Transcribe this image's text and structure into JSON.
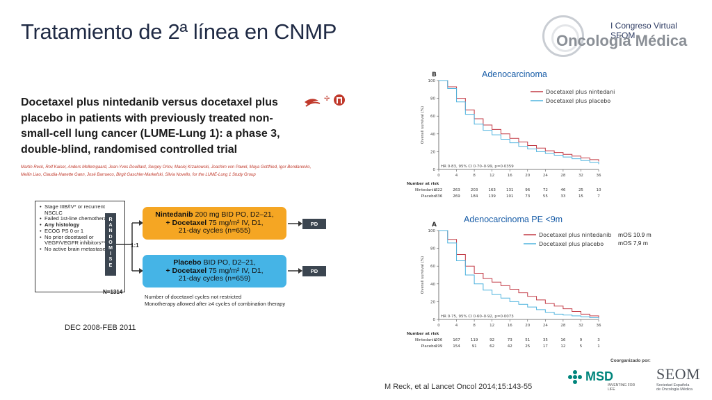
{
  "slide": {
    "title": "Tratamiento de 2ª línea en CNMP",
    "citation": "M Reck, et al Lancet Oncol 2014;15:143-55",
    "enrollment": "DEC 2008-FEB 2011"
  },
  "logo": {
    "top": "I Congreso Virtual SEOM",
    "main": "Oncología Médica"
  },
  "paper": {
    "title": "Docetaxel plus nintedanib versus docetaxel plus placebo in patients with previously treated non-small-cell lung cancer (LUME-Lung 1): a phase 3, double-blind, randomised controlled trial",
    "authors": "Martin Reck, Rolf Kaiser, Anders Mellemgaard, Jean-Yves Douillard, Sergey Orlov, Maciej Krzakowski, Joachim von Pawel, Maya Gottfried, Igor Bondarenko, Meilin Liao, Claudia-Nanette Gann, José Barrueco, Birgit Gaschler-Markefski, Silvia Novello, for the LUME-Lung 1 Study Group",
    "journal_icon": "crossmark-icon"
  },
  "design": {
    "criteria": [
      {
        "text": "Stage IIIB/IV* or recurrent NSCLC",
        "bold": false
      },
      {
        "text": "Failed 1st-line chemotherapy",
        "bold": false
      },
      {
        "text": "Any histology",
        "bold": true
      },
      {
        "text": "ECOG PS 0 or 1",
        "bold": false
      },
      {
        "text": "No prior docetaxel or VEGF/VEGFR inhibitors**",
        "bold": false
      },
      {
        "text": "No active brain metastases",
        "bold": false
      }
    ],
    "randomise": "RANDOMISE",
    "ratio": "1:1",
    "n_total": "N=1314",
    "arm_a": {
      "lead": "Nintedanib",
      "line1": " 200 mg BID PO, D2–21,",
      "drug": "+ Docetaxel",
      "line2": " 75 mg/m² IV, D1,",
      "line3": "21-day cycles (n=655)"
    },
    "arm_b": {
      "lead": "Placebo",
      "line1": " BID PO, D2–21,",
      "drug": "+ Docetaxel",
      "line2": " 75 mg/m² IV, D1,",
      "line3": "21-day cycles (n=659)"
    },
    "pd_label": "PD",
    "note1": "Number of docetaxel cycles not restricted",
    "note2": "Monotherapy allowed after ≥4 cycles of combination therapy"
  },
  "panels": {
    "b_heading": "Adenocarcinoma",
    "a_heading": "Adenocarcinoma PE <9m",
    "mos1": "mOS 10.9 m",
    "mos2": "mOS   7,9 m"
  },
  "chart_data": [
    {
      "type": "line",
      "panel_letter": "B",
      "ylabel": "Overall survival (%)",
      "xlabel": "",
      "xlim": [
        0,
        36
      ],
      "ylim": [
        0,
        100
      ],
      "xticks": [
        0,
        4,
        8,
        12,
        16,
        20,
        24,
        28,
        32,
        36
      ],
      "yticks": [
        0,
        20,
        40,
        60,
        80,
        100
      ],
      "colors": {
        "Docetaxel plus nintedanib": "#c23a45",
        "Docetaxel plus placebo": "#4fb3de"
      },
      "series": [
        {
          "name": "Docetaxel plus nintedanib",
          "x": [
            0,
            2,
            4,
            6,
            8,
            10,
            12,
            14,
            16,
            18,
            20,
            22,
            24,
            26,
            28,
            30,
            32,
            34,
            36
          ],
          "values": [
            100,
            93,
            80,
            67,
            57,
            50,
            45,
            40,
            35,
            31,
            27,
            24,
            21,
            19,
            17,
            15,
            13,
            11,
            9
          ]
        },
        {
          "name": "Docetaxel plus placebo",
          "x": [
            0,
            2,
            4,
            6,
            8,
            10,
            12,
            14,
            16,
            18,
            20,
            22,
            24,
            26,
            28,
            30,
            32,
            34,
            36
          ],
          "values": [
            100,
            91,
            76,
            62,
            51,
            44,
            39,
            34,
            30,
            26,
            23,
            20,
            18,
            16,
            14,
            12,
            10,
            8,
            6
          ]
        }
      ],
      "annotation": "HR 0·83, 95% CI 0·70–0·99, p=0·0359",
      "risk_title": "Number at risk",
      "risk_rows": [
        {
          "label": "Nintedanib",
          "values": [
            "322",
            "263",
            "203",
            "163",
            "131",
            "96",
            "72",
            "46",
            "25",
            "10"
          ]
        },
        {
          "label": "Placebo",
          "values": [
            "336",
            "269",
            "184",
            "139",
            "101",
            "73",
            "55",
            "33",
            "15",
            "7"
          ]
        }
      ]
    },
    {
      "type": "line",
      "panel_letter": "A",
      "ylabel": "Overall survival (%)",
      "xlabel": "",
      "xlim": [
        0,
        36
      ],
      "ylim": [
        0,
        100
      ],
      "xticks": [
        0,
        4,
        8,
        12,
        16,
        20,
        24,
        28,
        32,
        36
      ],
      "yticks": [
        0,
        20,
        40,
        60,
        80,
        100
      ],
      "colors": {
        "Docetaxel plus nintedanib": "#c23a45",
        "Docetaxel plus placebo": "#4fb3de"
      },
      "series": [
        {
          "name": "Docetaxel plus nintedanib",
          "x": [
            0,
            2,
            4,
            6,
            8,
            10,
            12,
            14,
            16,
            18,
            20,
            22,
            24,
            26,
            28,
            30,
            32,
            34,
            36
          ],
          "values": [
            100,
            90,
            73,
            60,
            52,
            46,
            42,
            38,
            34,
            30,
            26,
            22,
            18,
            15,
            12,
            9,
            6,
            4,
            2
          ]
        },
        {
          "name": "Docetaxel plus placebo",
          "x": [
            0,
            2,
            4,
            6,
            8,
            10,
            12,
            14,
            16,
            18,
            20,
            22,
            24,
            26,
            28,
            30,
            32,
            34,
            36
          ],
          "values": [
            100,
            86,
            66,
            50,
            40,
            33,
            28,
            24,
            20,
            17,
            14,
            11,
            8,
            6,
            5,
            4,
            3,
            2,
            1
          ]
        }
      ],
      "annotation": "HR 0·75, 95% CI 0·60–0·92, p=0·0073",
      "risk_title": "Number at risk",
      "risk_rows": [
        {
          "label": "Nintedanib",
          "values": [
            "206",
            "167",
            "119",
            "92",
            "73",
            "51",
            "35",
            "16",
            "9",
            "3"
          ]
        },
        {
          "label": "Placebo",
          "values": [
            "199",
            "154",
            "91",
            "62",
            "42",
            "25",
            "17",
            "12",
            "5",
            "1"
          ]
        }
      ]
    }
  ],
  "footer": {
    "coorganized": "Coorganizado por:",
    "msd": "MSD",
    "msd_sub": "INVENTING FOR LIFE",
    "seom": "SEOM",
    "seom_sub1": "Sociedad Española",
    "seom_sub2": "de Oncología Médica",
    "msd_icon": "msd-logo-icon"
  }
}
